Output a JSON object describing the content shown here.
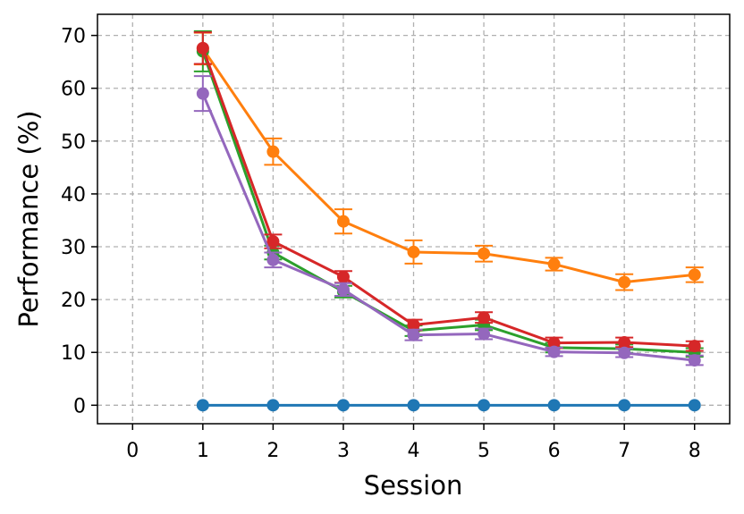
{
  "chart_data": {
    "type": "line",
    "xlabel": "Session",
    "ylabel": "Performance (%)",
    "xlim": [
      -0.5,
      8.5
    ],
    "ylim": [
      -3.5,
      74
    ],
    "xticks": [
      0,
      1,
      2,
      3,
      4,
      5,
      6,
      7,
      8
    ],
    "yticks": [
      0,
      10,
      20,
      30,
      40,
      50,
      60,
      70
    ],
    "grid": true,
    "x": [
      1,
      2,
      3,
      4,
      5,
      6,
      7,
      8
    ],
    "series": [
      {
        "color": "#1f77b4",
        "values": [
          0,
          0,
          0,
          0,
          0,
          0,
          0,
          0
        ],
        "errors": [
          0,
          0,
          0,
          0,
          0,
          0,
          0,
          0
        ]
      },
      {
        "color": "#ff7f0e",
        "values": [
          67.5,
          48.0,
          34.8,
          29.0,
          28.7,
          26.7,
          23.3,
          24.7
        ],
        "errors": [
          3.0,
          2.5,
          2.3,
          2.2,
          1.5,
          1.2,
          1.5,
          1.4
        ]
      },
      {
        "color": "#2ca02c",
        "values": [
          67.0,
          28.9,
          21.5,
          14.1,
          15.2,
          10.9,
          10.7,
          10.0
        ],
        "errors": [
          3.8,
          1.3,
          1.1,
          1.0,
          1.0,
          0.9,
          0.8,
          0.8
        ]
      },
      {
        "color": "#d62728",
        "values": [
          67.6,
          31.0,
          24.3,
          15.2,
          16.6,
          11.8,
          11.9,
          11.2
        ],
        "errors": [
          3.0,
          1.3,
          1.1,
          1.0,
          1.0,
          1.0,
          0.9,
          0.9
        ]
      },
      {
        "color": "#9467bd",
        "values": [
          59.0,
          27.5,
          21.9,
          13.3,
          13.5,
          10.1,
          9.9,
          8.5
        ],
        "errors": [
          3.3,
          1.4,
          1.2,
          1.0,
          1.0,
          0.8,
          0.8,
          0.9
        ]
      }
    ]
  }
}
